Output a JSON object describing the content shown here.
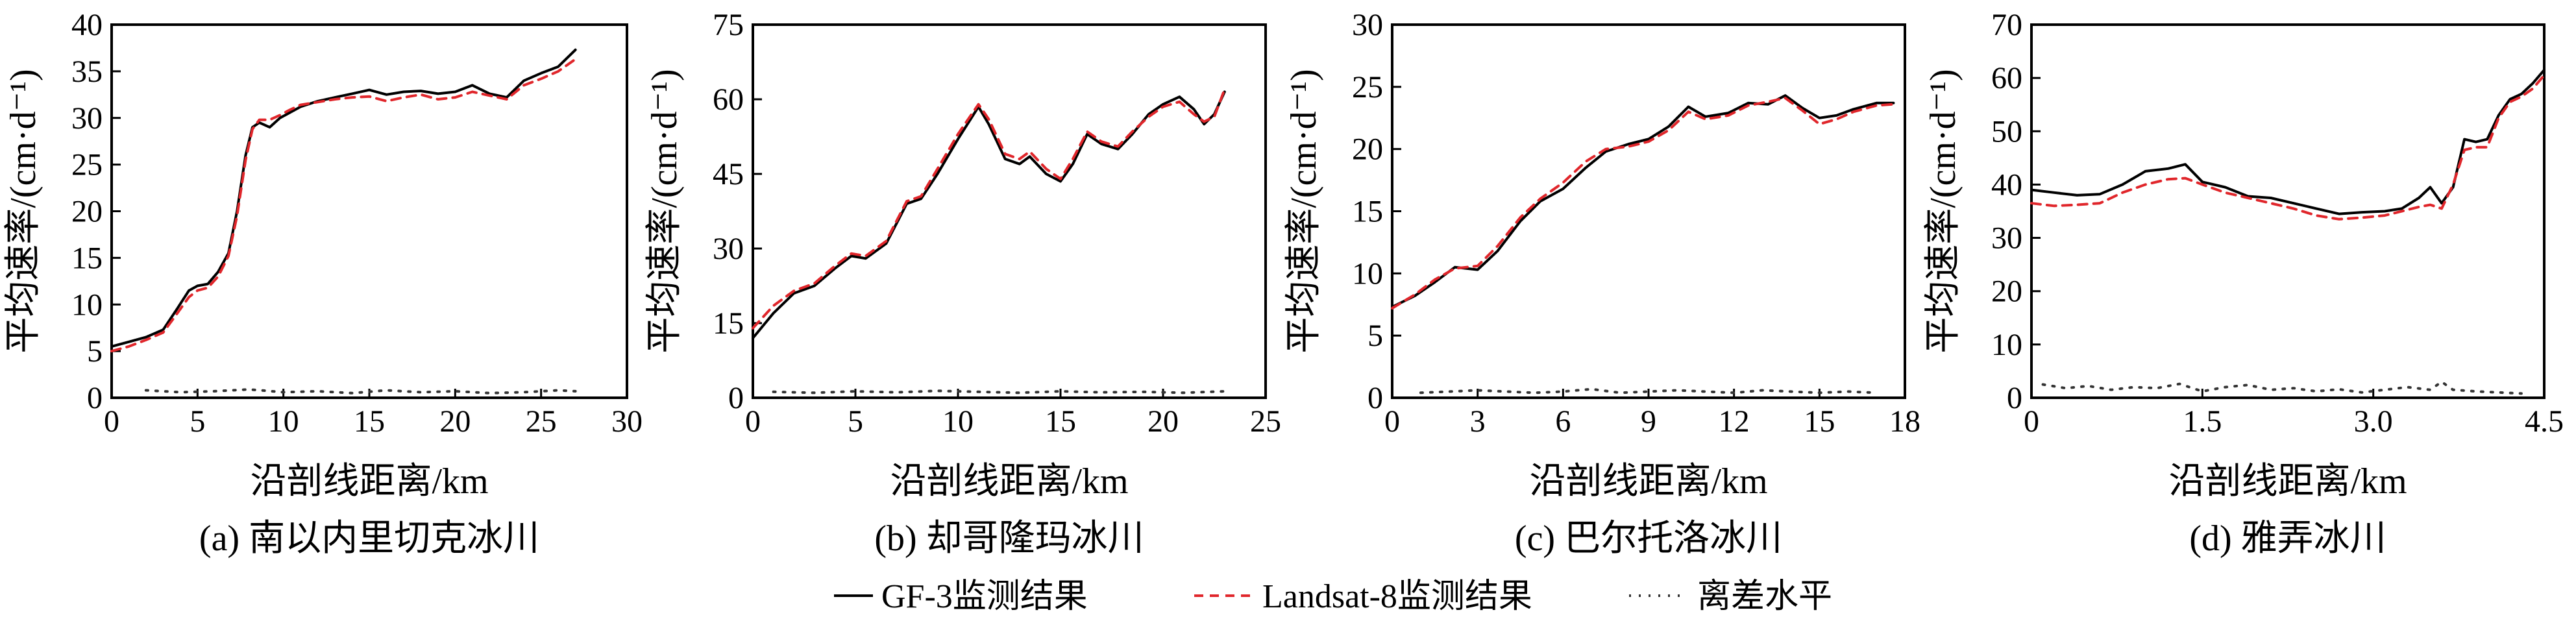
{
  "legend": {
    "gf3": "GF-3监测结果",
    "landsat": "Landsat-8监测结果",
    "deviation": "离差水平",
    "colors": {
      "gf3": "#000000",
      "landsat": "#e0262b",
      "deviation": "#333333"
    }
  },
  "chart_data": [
    {
      "type": "line",
      "caption": "(a) 南以内里切克冰川",
      "xlabel": "沿剖线距离/km",
      "ylabel": "平均速率/(cm·d⁻¹)",
      "xlim": [
        0,
        30
      ],
      "ylim": [
        0,
        40
      ],
      "xticks": [
        "0",
        "5",
        "10",
        "15",
        "20",
        "25",
        "30"
      ],
      "yticks": [
        "0",
        "5",
        "10",
        "15",
        "20",
        "25",
        "30",
        "35",
        "40"
      ],
      "series": [
        {
          "name": "GF-3监测结果",
          "style": "solid",
          "x": [
            0,
            1,
            2,
            3,
            3.8,
            4.5,
            5,
            5.6,
            6.2,
            6.8,
            7.3,
            7.8,
            8.2,
            8.6,
            9.2,
            9.8,
            10.3,
            11,
            12,
            13,
            14,
            15,
            16,
            17,
            18,
            19,
            20,
            21,
            22,
            23,
            24,
            25,
            26,
            27
          ],
          "y": [
            5.5,
            6,
            6.5,
            7.3,
            9.5,
            11.5,
            12,
            12.2,
            13.5,
            15.5,
            20,
            26,
            29,
            29.5,
            29,
            30,
            30.5,
            31.2,
            31.8,
            32.2,
            32.6,
            33,
            32.5,
            32.8,
            32.9,
            32.6,
            32.8,
            33.5,
            32.6,
            32.2,
            34,
            34.8,
            35.5,
            37.3
          ]
        },
        {
          "name": "Landsat-8监测结果",
          "style": "dashed",
          "x": [
            0,
            1,
            2,
            3,
            3.8,
            4.5,
            5,
            5.6,
            6.2,
            6.8,
            7.3,
            7.8,
            8.2,
            8.6,
            9.2,
            9.8,
            10.3,
            11,
            12,
            13,
            14,
            15,
            16,
            17,
            18,
            19,
            20,
            21,
            22,
            23,
            24,
            25,
            26,
            27
          ],
          "y": [
            5,
            5.5,
            6.2,
            7,
            9,
            10.8,
            11.5,
            11.8,
            13,
            15.2,
            19.5,
            25.5,
            28.8,
            29.8,
            29.8,
            30.3,
            30.8,
            31.4,
            31.7,
            32,
            32.2,
            32.3,
            31.8,
            32.2,
            32.5,
            32,
            32.2,
            32.8,
            32.4,
            32,
            33.5,
            34.2,
            35,
            36.3
          ]
        },
        {
          "name": "离差水平",
          "style": "dotted",
          "x": [
            2,
            4,
            6,
            8,
            10,
            12,
            14,
            16,
            18,
            20,
            22,
            24,
            26,
            27
          ],
          "y": [
            0.8,
            0.6,
            0.7,
            0.9,
            0.6,
            0.7,
            0.5,
            0.8,
            0.6,
            0.7,
            0.5,
            0.6,
            0.8,
            0.7
          ]
        }
      ]
    },
    {
      "type": "line",
      "caption": "(b) 却哥隆玛冰川",
      "xlabel": "沿剖线距离/km",
      "ylabel": "平均速率/(cm·d⁻¹)",
      "xlim": [
        0,
        25
      ],
      "ylim": [
        0,
        75
      ],
      "xticks": [
        "0",
        "5",
        "10",
        "15",
        "20",
        "25"
      ],
      "yticks": [
        "0",
        "15",
        "30",
        "45",
        "60",
        "75"
      ],
      "series": [
        {
          "name": "GF-3监测结果",
          "style": "solid",
          "x": [
            0,
            1,
            2,
            3,
            4,
            4.8,
            5.5,
            6.5,
            7.5,
            8.2,
            9,
            10,
            11,
            11.5,
            12.3,
            13,
            13.5,
            14.3,
            15,
            15.6,
            16.3,
            17,
            17.8,
            18.5,
            19.3,
            20,
            20.8,
            21.5,
            22,
            22.5,
            23
          ],
          "y": [
            12,
            17,
            21,
            22.5,
            26,
            28.5,
            28,
            31,
            39,
            40,
            45,
            52,
            58.5,
            55,
            48,
            47,
            48.5,
            45,
            43.5,
            47,
            53,
            51,
            50,
            53,
            57,
            59,
            60.5,
            58,
            55,
            57,
            61.5
          ]
        },
        {
          "name": "Landsat-8监测结果",
          "style": "dashed",
          "x": [
            0,
            1,
            2,
            3,
            4,
            4.8,
            5.5,
            6.5,
            7.5,
            8.2,
            9,
            10,
            11,
            11.5,
            12.3,
            13,
            13.5,
            14.3,
            15,
            15.6,
            16.3,
            17,
            17.8,
            18.5,
            19.3,
            20,
            20.8,
            21.5,
            22,
            22.5,
            23
          ],
          "y": [
            14,
            18.5,
            21.5,
            23,
            26.5,
            29,
            28.5,
            31.5,
            39.5,
            40.5,
            46,
            53,
            59,
            56,
            49,
            48,
            49.5,
            46,
            44,
            48,
            53.5,
            51.5,
            50.5,
            53.5,
            56.5,
            58.5,
            59.5,
            57,
            55.5,
            56.5,
            62
          ]
        },
        {
          "name": "离差水平",
          "style": "dotted",
          "x": [
            1,
            3,
            5,
            7,
            9,
            11,
            13,
            15,
            17,
            19,
            21,
            23
          ],
          "y": [
            1.2,
            1,
            1.3,
            1.1,
            1.4,
            1.2,
            1,
            1.3,
            1.1,
            1.2,
            1,
            1.3
          ]
        }
      ]
    },
    {
      "type": "line",
      "caption": "(c) 巴尔托洛冰川",
      "xlabel": "沿剖线距离/km",
      "ylabel": "平均速率/(cm·d⁻¹)",
      "xlim": [
        0,
        18
      ],
      "ylim": [
        0,
        30
      ],
      "xticks": [
        "0",
        "3",
        "6",
        "9",
        "12",
        "15",
        "18"
      ],
      "yticks": [
        "0",
        "5",
        "10",
        "15",
        "20",
        "25",
        "30"
      ],
      "series": [
        {
          "name": "GF-3监测结果",
          "style": "solid",
          "x": [
            0,
            0.8,
            1.5,
            2.2,
            3,
            3.7,
            4.5,
            5.2,
            6,
            6.8,
            7.5,
            8.3,
            9,
            9.7,
            10.4,
            11,
            11.8,
            12.5,
            13.2,
            13.8,
            14.4,
            15,
            15.6,
            16.2,
            17,
            17.6
          ],
          "y": [
            7.3,
            8.2,
            9.3,
            10.5,
            10.3,
            11.8,
            14.2,
            15.8,
            16.8,
            18.5,
            19.8,
            20.4,
            20.8,
            21.8,
            23.4,
            22.6,
            22.9,
            23.7,
            23.6,
            24.3,
            23.3,
            22.5,
            22.7,
            23.2,
            23.7,
            23.7
          ]
        },
        {
          "name": "Landsat-8监测结果",
          "style": "dashed",
          "x": [
            0,
            0.8,
            1.5,
            2.2,
            3,
            3.7,
            4.5,
            5.2,
            6,
            6.8,
            7.5,
            8.3,
            9,
            9.7,
            10.4,
            11,
            11.8,
            12.5,
            13.2,
            13.8,
            14.4,
            15,
            15.6,
            16.2,
            17,
            17.6
          ],
          "y": [
            7.2,
            8.3,
            9.5,
            10.4,
            10.6,
            12.2,
            14.5,
            16,
            17.3,
            19,
            20,
            20.2,
            20.6,
            21.5,
            23,
            22.4,
            22.7,
            23.5,
            23.8,
            24.1,
            23.1,
            22,
            22.4,
            23,
            23.5,
            23.6
          ]
        },
        {
          "name": "离差水平",
          "style": "dotted",
          "x": [
            1,
            2,
            3,
            4,
            5,
            6,
            7,
            8,
            9,
            10,
            11,
            12,
            13,
            14,
            15,
            16,
            17
          ],
          "y": [
            0.4,
            0.5,
            0.6,
            0.5,
            0.4,
            0.5,
            0.7,
            0.4,
            0.5,
            0.6,
            0.5,
            0.4,
            0.6,
            0.5,
            0.4,
            0.5,
            0.4
          ]
        }
      ]
    },
    {
      "type": "line",
      "caption": "(d) 雅弄冰川",
      "xlabel": "沿剖线距离/km",
      "ylabel": "平均速率/(cm·d⁻¹)",
      "xlim": [
        0,
        4.5
      ],
      "ylim": [
        0,
        70
      ],
      "xticks": [
        "0",
        "1.5",
        "3.0",
        "4.5"
      ],
      "xtick_values": [
        0,
        1.5,
        3.0,
        4.5
      ],
      "yticks": [
        "0",
        "10",
        "20",
        "30",
        "40",
        "50",
        "60",
        "70"
      ],
      "series": [
        {
          "name": "GF-3监测结果",
          "style": "solid",
          "x": [
            0,
            0.2,
            0.4,
            0.6,
            0.8,
            1.0,
            1.2,
            1.35,
            1.5,
            1.7,
            1.9,
            2.1,
            2.3,
            2.5,
            2.7,
            2.9,
            3.1,
            3.25,
            3.4,
            3.5,
            3.6,
            3.7,
            3.8,
            3.9,
            4.0,
            4.1,
            4.2,
            4.3,
            4.4,
            4.5
          ],
          "y": [
            39,
            38.5,
            38,
            38.2,
            40,
            42.5,
            43,
            43.8,
            40.5,
            39.5,
            37.8,
            37.5,
            36.5,
            35.5,
            34.5,
            34.8,
            35,
            35.5,
            37.5,
            39.5,
            36.5,
            39.5,
            48.5,
            48,
            48.5,
            53,
            56,
            57,
            59,
            61.5
          ]
        },
        {
          "name": "Landsat-8监测结果",
          "style": "dashed",
          "x": [
            0,
            0.2,
            0.4,
            0.6,
            0.8,
            1.0,
            1.2,
            1.35,
            1.5,
            1.7,
            1.9,
            2.1,
            2.3,
            2.5,
            2.7,
            2.9,
            3.1,
            3.25,
            3.4,
            3.5,
            3.6,
            3.7,
            3.8,
            3.9,
            4.0,
            4.1,
            4.2,
            4.3,
            4.4,
            4.5
          ],
          "y": [
            36.5,
            36,
            36.2,
            36.5,
            38.5,
            40,
            41,
            41.2,
            40,
            38.5,
            37.5,
            36.5,
            35.5,
            34.2,
            33.5,
            33.8,
            34.2,
            35,
            35.8,
            36.2,
            35.5,
            40,
            46.5,
            47,
            47,
            52.5,
            55.5,
            56.5,
            58,
            60.5
          ]
        },
        {
          "name": "离差水平",
          "style": "dotted",
          "x": [
            0.1,
            0.3,
            0.5,
            0.7,
            0.9,
            1.1,
            1.3,
            1.5,
            1.7,
            1.9,
            2.1,
            2.3,
            2.5,
            2.7,
            2.9,
            3.1,
            3.3,
            3.5,
            3.6,
            3.7,
            3.9,
            4.1,
            4.3
          ],
          "y": [
            2.5,
            1.8,
            2.2,
            1.5,
            2,
            1.8,
            2.6,
            1.2,
            2,
            2.4,
            1.5,
            1.8,
            1.2,
            1.6,
            1,
            1.5,
            2,
            1.5,
            3,
            1.5,
            1.2,
            1,
            0.8
          ]
        }
      ]
    }
  ]
}
